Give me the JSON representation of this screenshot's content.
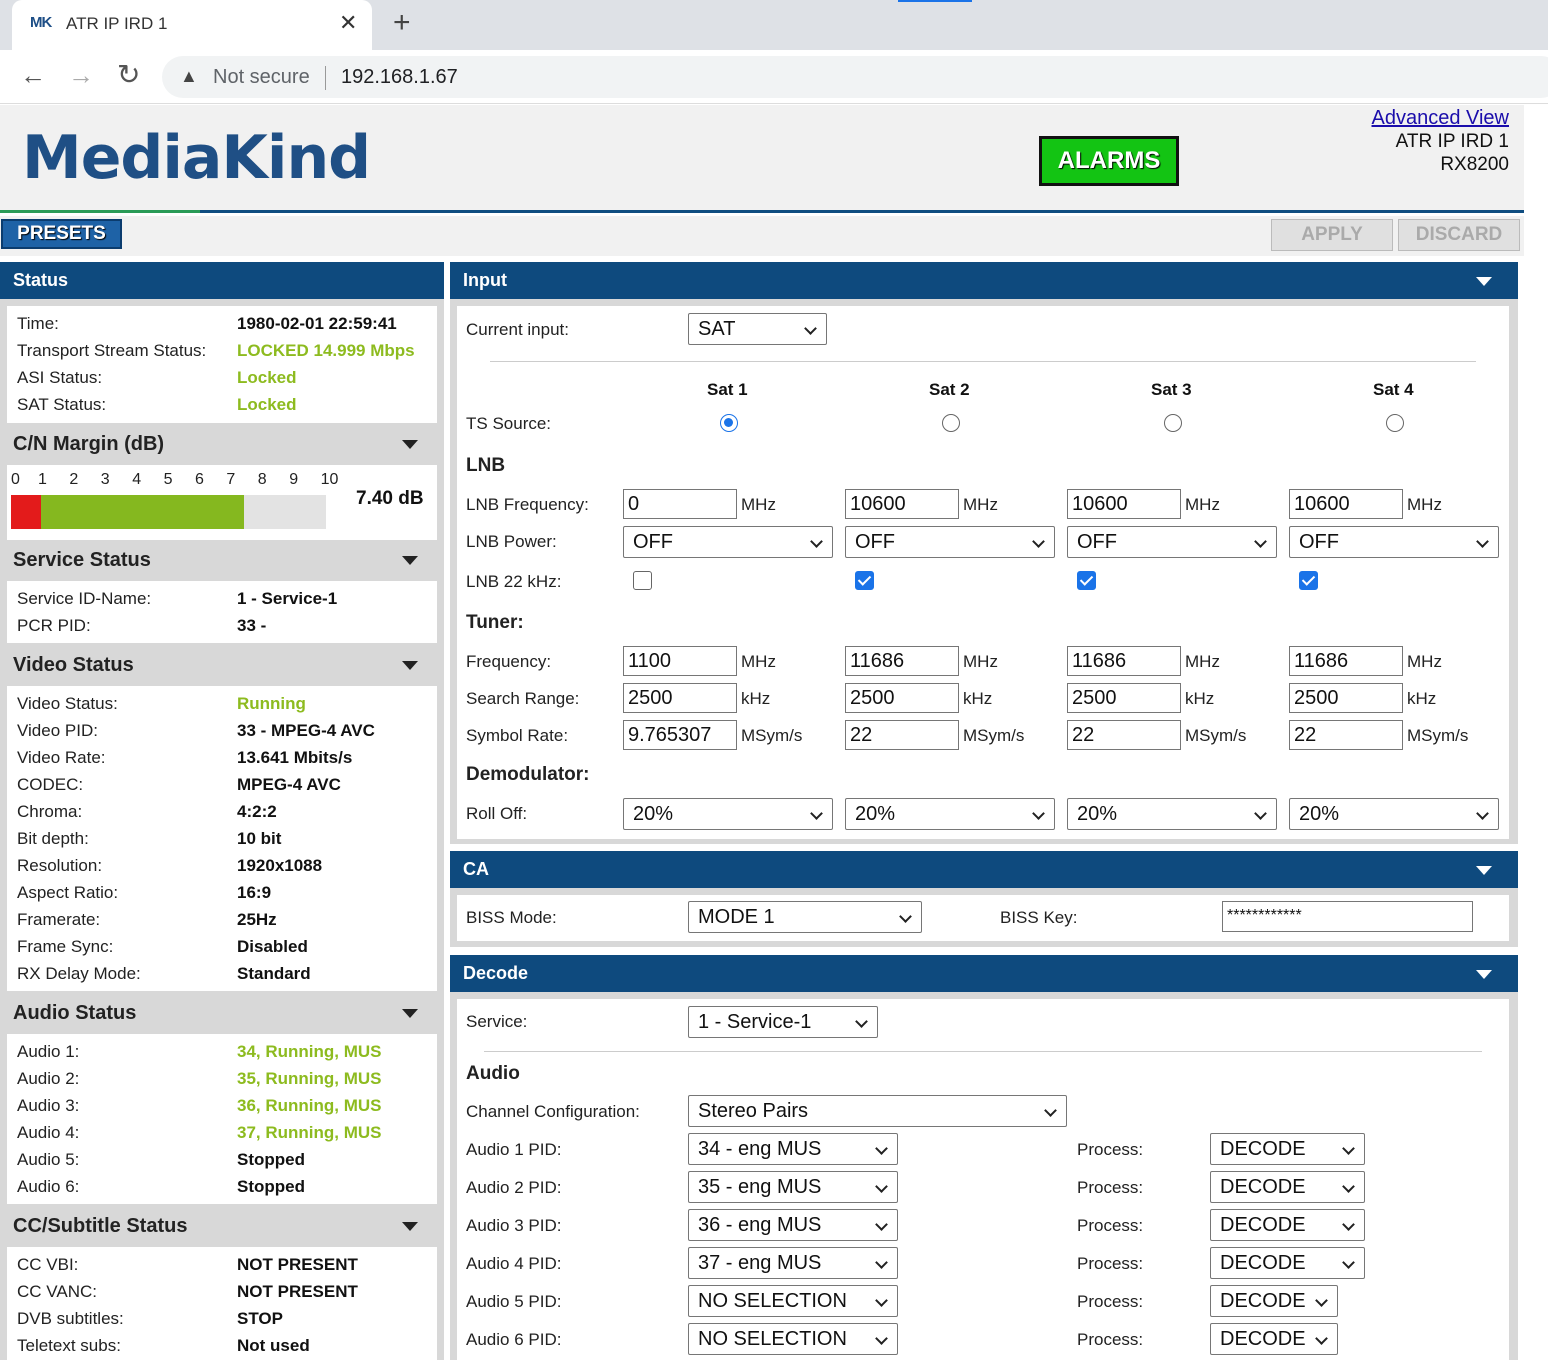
{
  "browser": {
    "tab_title": "ATR IP IRD 1",
    "favicon_text": "MK",
    "new_tab": "+",
    "close": "✕",
    "not_secure": "Not secure",
    "url": "192.168.1.67"
  },
  "header": {
    "logo_text_a": "Media",
    "logo_text_b": "Kind",
    "alarms": "ALARMS",
    "advanced_view": "Advanced View",
    "device_name": "ATR IP IRD 1",
    "device_model": "RX8200",
    "alarm_color": "#13c413"
  },
  "toolbar": {
    "presets": "PRESETS",
    "apply": "APPLY",
    "discard": "DISCARD"
  },
  "status": {
    "title": "Status",
    "rows": [
      {
        "label": "Time:",
        "value": "1980-02-01 22:59:41"
      },
      {
        "label": "Transport Stream Status:",
        "value": "LOCKED 14.999 Mbps"
      },
      {
        "label": "ASI Status:",
        "value": "Locked"
      },
      {
        "label": "SAT Status:",
        "value": "Locked"
      }
    ]
  },
  "cn_margin": {
    "title": "C/N Margin (dB)",
    "ticks": [
      "0",
      "1",
      "2",
      "3",
      "4",
      "5",
      "6",
      "7",
      "8",
      "9",
      "10"
    ],
    "value_text": "7.40 dB",
    "value": 7.4
  },
  "service_status": {
    "title": "Service Status",
    "rows": [
      {
        "label": "Service ID-Name:",
        "value": "1 - Service-1"
      },
      {
        "label": "PCR PID:",
        "value": "33 -"
      }
    ]
  },
  "video_status": {
    "title": "Video Status",
    "rows": [
      {
        "label": "Video Status:",
        "value": "Running"
      },
      {
        "label": "Video PID:",
        "value": "33 - MPEG-4 AVC"
      },
      {
        "label": "Video Rate:",
        "value": "13.641 Mbits/s"
      },
      {
        "label": "CODEC:",
        "value": "MPEG-4 AVC"
      },
      {
        "label": "Chroma:",
        "value": "4:2:2"
      },
      {
        "label": "Bit depth:",
        "value": "10 bit"
      },
      {
        "label": "Resolution:",
        "value": "1920x1088"
      },
      {
        "label": "Aspect Ratio:",
        "value": "16:9"
      },
      {
        "label": "Framerate:",
        "value": "25Hz"
      },
      {
        "label": "Frame Sync:",
        "value": "Disabled"
      },
      {
        "label": "RX Delay Mode:",
        "value": "Standard"
      }
    ]
  },
  "audio_status": {
    "title": "Audio Status",
    "rows": [
      {
        "label": "Audio 1:",
        "value": "34, Running, MUS"
      },
      {
        "label": "Audio 2:",
        "value": "35, Running, MUS"
      },
      {
        "label": "Audio 3:",
        "value": "36, Running, MUS"
      },
      {
        "label": "Audio 4:",
        "value": "37, Running, MUS"
      },
      {
        "label": "Audio 5:",
        "value": "Stopped"
      },
      {
        "label": "Audio 6:",
        "value": "Stopped"
      }
    ]
  },
  "cc_status": {
    "title": "CC/Subtitle Status",
    "rows": [
      {
        "label": "CC VBI:",
        "value": "NOT PRESENT"
      },
      {
        "label": "CC VANC:",
        "value": "NOT PRESENT"
      },
      {
        "label": "DVB subtitles:",
        "value": "STOP"
      },
      {
        "label": "Teletext subs:",
        "value": "Not used"
      }
    ]
  },
  "input": {
    "title": "Input",
    "current_input_label": "Current input:",
    "current_input": "SAT",
    "sats": [
      "Sat 1",
      "Sat 2",
      "Sat 3",
      "Sat 4"
    ],
    "ts_source_label": "TS Source:",
    "lnb_title": "LNB",
    "lnb_freq_label": "LNB Frequency:",
    "lnb_freq": [
      "0",
      "10600",
      "10600",
      "10600"
    ],
    "mhz": "MHz",
    "khz": "kHz",
    "msyms": "MSym/s",
    "lnb_power_label": "LNB Power:",
    "lnb_power": [
      "OFF",
      "OFF",
      "OFF",
      "OFF"
    ],
    "lnb22_label": "LNB 22 kHz:",
    "tuner_title": "Tuner:",
    "freq_label": "Frequency:",
    "freq": [
      "1100",
      "11686",
      "11686",
      "11686"
    ],
    "search_label": "Search Range:",
    "search": [
      "2500",
      "2500",
      "2500",
      "2500"
    ],
    "symbol_label": "Symbol Rate:",
    "symbol": [
      "9.765307",
      "22",
      "22",
      "22"
    ],
    "demod_title": "Demodulator:",
    "rolloff_label": "Roll Off:",
    "rolloff": [
      "20%",
      "20%",
      "20%",
      "20%"
    ]
  },
  "ca": {
    "title": "CA",
    "biss_mode_label": "BISS Mode:",
    "biss_mode": "MODE 1",
    "biss_key_label": "BISS Key:",
    "biss_key": "************"
  },
  "decode": {
    "title": "Decode",
    "service_label": "Service:",
    "service": "1 - Service-1",
    "audio_title": "Audio",
    "channel_config_label": "Channel Configuration:",
    "channel_config": "Stereo Pairs",
    "process_label": "Process:",
    "audio_rows": [
      {
        "label": "Audio 1 PID:",
        "pid": "34 - eng MUS",
        "process": "DECODE"
      },
      {
        "label": "Audio 2 PID:",
        "pid": "35 - eng MUS",
        "process": "DECODE"
      },
      {
        "label": "Audio 3 PID:",
        "pid": "36 - eng MUS",
        "process": "DECODE"
      },
      {
        "label": "Audio 4 PID:",
        "pid": "37 - eng MUS",
        "process": "DECODE"
      },
      {
        "label": "Audio 5 PID:",
        "pid": "NO SELECTION",
        "process": "DECODE"
      },
      {
        "label": "Audio 6 PID:",
        "pid": "NO SELECTION",
        "process": "DECODE"
      }
    ]
  }
}
